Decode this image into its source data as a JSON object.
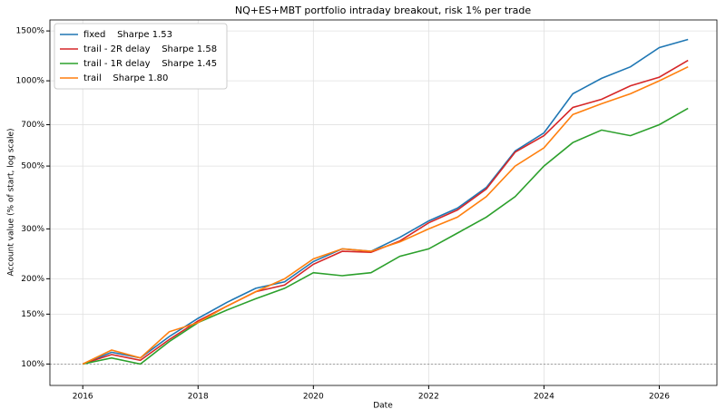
{
  "chart_data": {
    "type": "line",
    "title": "NQ+ES+MBT portfolio intraday breakout, risk 1% per trade",
    "x_label": "Date",
    "y_label": "Account value (% of start, log scale)",
    "x": [
      2016.0,
      2016.5,
      2017.0,
      2017.5,
      2018.0,
      2018.5,
      2019.0,
      2019.5,
      2020.0,
      2020.5,
      2021.0,
      2021.5,
      2022.0,
      2022.5,
      2023.0,
      2023.5,
      2024.0,
      2024.5,
      2025.0,
      2025.5,
      2026.0,
      2026.5
    ],
    "series": [
      {
        "name": "fixed    Sharpe 1.53",
        "color": "#1f77b4",
        "values": [
          100,
          110,
          105,
          125,
          145,
          165,
          185,
          195,
          230,
          255,
          250,
          280,
          320,
          355,
          420,
          565,
          655,
          900,
          1020,
          1120,
          1310,
          1400
        ]
      },
      {
        "name": "trail - 2R delay    Sharpe 1.58",
        "color": "#d62728",
        "values": [
          100,
          108,
          103,
          122,
          142,
          160,
          180,
          190,
          225,
          250,
          248,
          272,
          315,
          350,
          415,
          560,
          640,
          805,
          860,
          960,
          1030,
          1180
        ]
      },
      {
        "name": "trail - 1R delay    Sharpe 1.45",
        "color": "#2ca02c",
        "values": [
          100,
          105,
          100,
          120,
          140,
          155,
          170,
          185,
          210,
          205,
          210,
          240,
          255,
          290,
          330,
          390,
          500,
          605,
          670,
          640,
          700,
          800
        ]
      },
      {
        "name": "trail    Sharpe 1.80",
        "color": "#ff7f0e",
        "values": [
          100,
          112,
          105,
          130,
          140,
          160,
          180,
          200,
          235,
          255,
          250,
          270,
          300,
          330,
          390,
          500,
          580,
          760,
          830,
          900,
          1000,
          1120
        ]
      }
    ],
    "xlim": [
      2015.43,
      2027.0
    ],
    "xticks": [
      2016,
      2018,
      2020,
      2022,
      2024,
      2026
    ],
    "ylim": [
      84,
      1640
    ],
    "yscale": "log",
    "yticks": [
      {
        "value": 100,
        "label": "100%"
      },
      {
        "value": 150,
        "label": "150%"
      },
      {
        "value": 200,
        "label": "200%"
      },
      {
        "value": 300,
        "label": "300%"
      },
      {
        "value": 500,
        "label": "500%"
      },
      {
        "value": 700,
        "label": "700%"
      },
      {
        "value": 1000,
        "label": "1000%"
      },
      {
        "value": 1500,
        "label": "1500%"
      }
    ],
    "reference_line": 100,
    "grid": true,
    "legend": "upper left"
  }
}
